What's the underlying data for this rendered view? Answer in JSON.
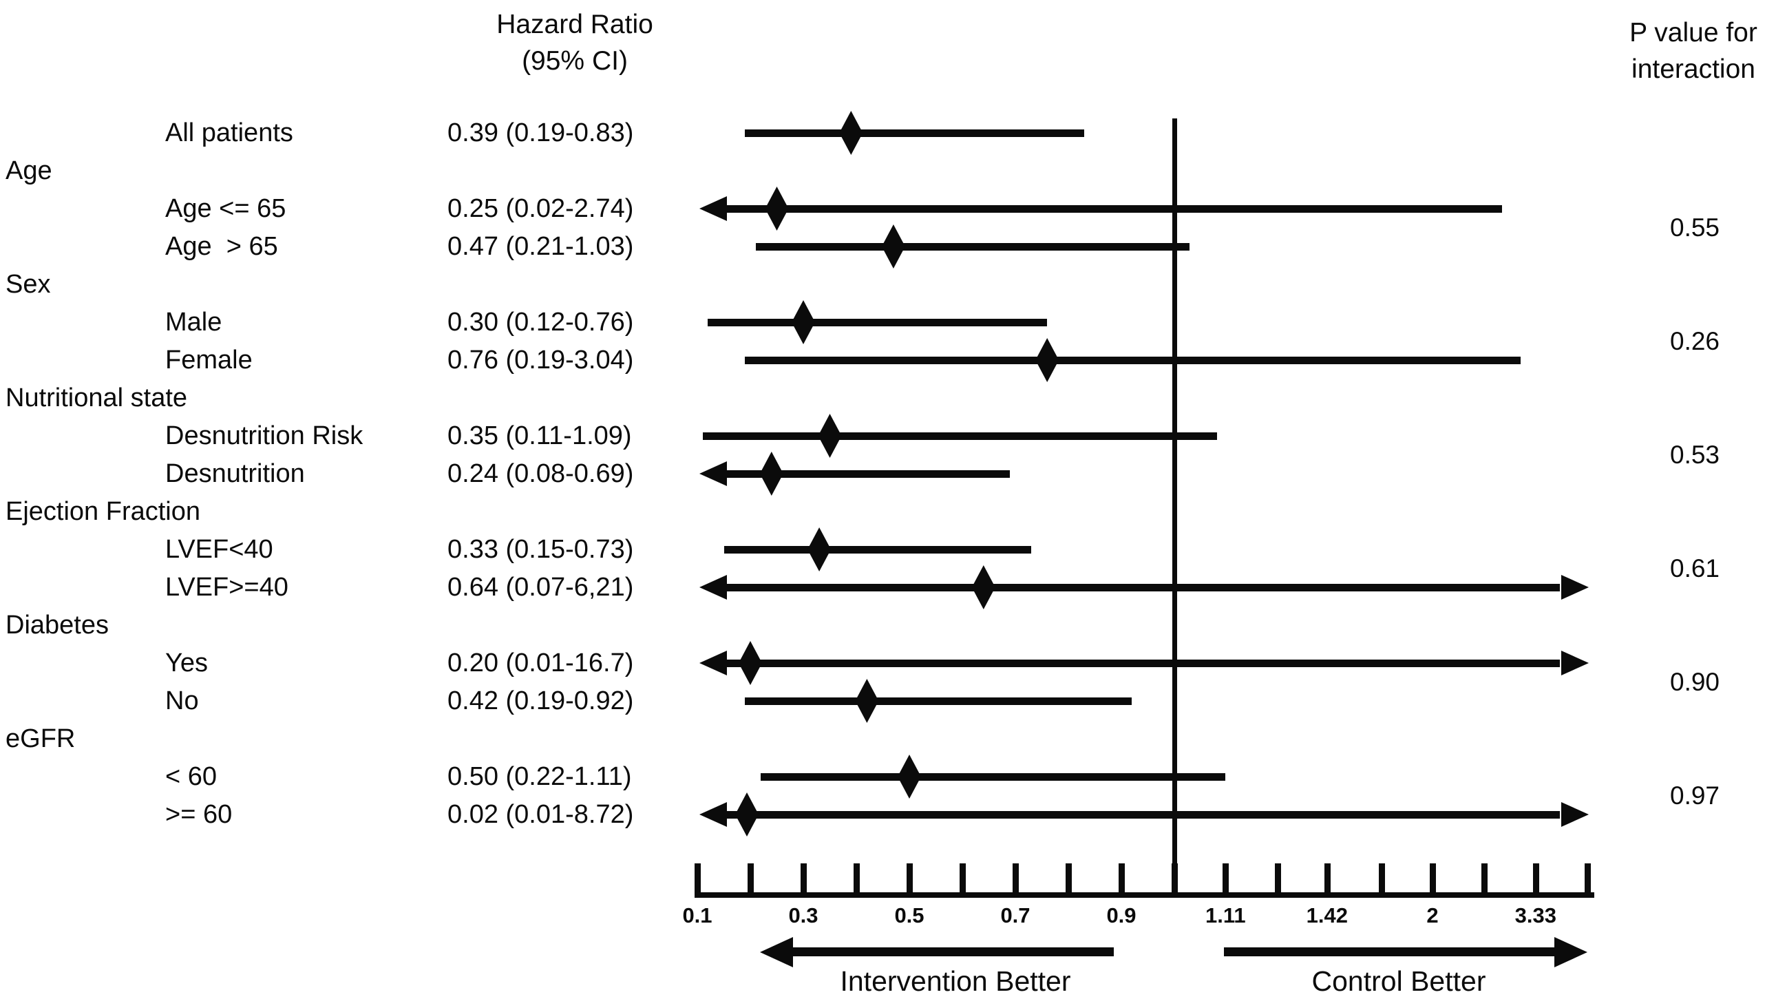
{
  "columns": {
    "hazard_line1": "Hazard Ratio",
    "hazard_line2": "(95% CI)",
    "p_line1": "P value for",
    "p_line2": "interaction"
  },
  "chart_data": {
    "type": "forest",
    "title": "Hazard Ratio (95% CI) forest plot by subgroup",
    "x_axis": {
      "scale": "linear 0.1-1 on left of reference line, reciprocal mirror on right",
      "reference_value": 1,
      "axis_min": 0.1,
      "axis_max": 5,
      "ticks_left": [
        {
          "v": 0.1,
          "label": "0.1"
        },
        {
          "v": 0.2,
          "label": ""
        },
        {
          "v": 0.3,
          "label": "0.3"
        },
        {
          "v": 0.4,
          "label": ""
        },
        {
          "v": 0.5,
          "label": "0.5"
        },
        {
          "v": 0.6,
          "label": ""
        },
        {
          "v": 0.7,
          "label": "0.7"
        },
        {
          "v": 0.8,
          "label": ""
        },
        {
          "v": 0.9,
          "label": "0.9"
        },
        {
          "v": 1.0,
          "label": ""
        }
      ],
      "ticks_right": [
        {
          "v": 1.11,
          "label": "1.11"
        },
        {
          "v": 1.25,
          "label": ""
        },
        {
          "v": 1.42,
          "label": "1.42"
        },
        {
          "v": 1.67,
          "label": ""
        },
        {
          "v": 2.0,
          "label": "2"
        },
        {
          "v": 2.5,
          "label": ""
        },
        {
          "v": 3.33,
          "label": "3.33"
        },
        {
          "v": 5.0,
          "label": ""
        }
      ]
    },
    "groups": [
      {
        "group_label": "",
        "p_value": "",
        "rows": [
          {
            "label": "All patients",
            "hr": 0.39,
            "ci_low": 0.19,
            "ci_high": 0.83,
            "ci_text": "0.39 (0.19-0.83)"
          }
        ]
      },
      {
        "group_label": "Age",
        "p_value": "0.55",
        "rows": [
          {
            "label": "Age <= 65",
            "hr": 0.25,
            "ci_low": 0.02,
            "ci_high": 2.74,
            "ci_text": "0.25 (0.02-2.74)"
          },
          {
            "label": "Age  > 65",
            "hr": 0.47,
            "ci_low": 0.21,
            "ci_high": 1.03,
            "ci_text": "0.47 (0.21-1.03)"
          }
        ]
      },
      {
        "group_label": "Sex",
        "p_value": "0.26",
        "rows": [
          {
            "label": "Male",
            "hr": 0.3,
            "ci_low": 0.12,
            "ci_high": 0.76,
            "ci_text": "0.30 (0.12-0.76)"
          },
          {
            "label": "Female",
            "hr": 0.76,
            "ci_low": 0.19,
            "ci_high": 3.04,
            "ci_text": "0.76 (0.19-3.04)"
          }
        ]
      },
      {
        "group_label": "Nutritional state",
        "p_value": "0.53",
        "rows": [
          {
            "label": "Desnutrition Risk",
            "hr": 0.35,
            "ci_low": 0.11,
            "ci_high": 1.09,
            "ci_text": "0.35 (0.11-1.09)"
          },
          {
            "label": "Desnutrition",
            "hr": 0.24,
            "ci_low": 0.08,
            "ci_high": 0.69,
            "ci_text": "0.24 (0.08-0.69)"
          }
        ]
      },
      {
        "group_label": "Ejection Fraction",
        "p_value": "0.61",
        "rows": [
          {
            "label": "LVEF<40",
            "hr": 0.33,
            "ci_low": 0.15,
            "ci_high": 0.73,
            "ci_text": "0.33 (0.15-0.73)"
          },
          {
            "label": "LVEF>=40",
            "hr": 0.64,
            "ci_low": 0.07,
            "ci_high": 6.21,
            "ci_text": "0.64 (0.07-6,21)"
          }
        ]
      },
      {
        "group_label": "Diabetes",
        "p_value": "0.90",
        "rows": [
          {
            "label": "Yes",
            "hr": 0.2,
            "ci_low": 0.01,
            "ci_high": 16.7,
            "ci_text": "0.20 (0.01-16.7)"
          },
          {
            "label": "No",
            "hr": 0.42,
            "ci_low": 0.19,
            "ci_high": 0.92,
            "ci_text": "0.42 (0.19-0.92)"
          }
        ]
      },
      {
        "group_label": "eGFR",
        "p_value": "0.97",
        "rows": [
          {
            "label": "< 60",
            "hr": 0.5,
            "ci_low": 0.22,
            "ci_high": 1.11,
            "ci_text": "0.50 (0.22-1.11)"
          },
          {
            "label": ">= 60",
            "hr": 0.02,
            "ci_low": 0.01,
            "ci_high": 8.72,
            "ci_text": "0.02 (0.01-8.72)"
          }
        ]
      }
    ],
    "better_labels": {
      "left": "Intervention Better",
      "right": "Control Better"
    }
  }
}
